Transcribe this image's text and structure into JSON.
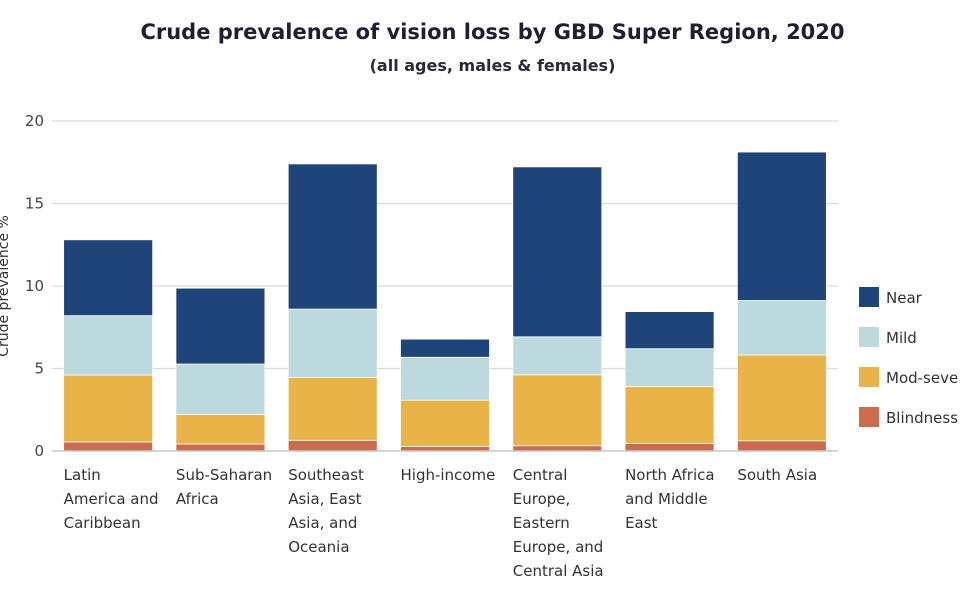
{
  "title": "Crude prevalence of vision loss by GBD Super Region, 2020",
  "subtitle": "(all ages, males & females)",
  "colors": {
    "Near": "#1e4479",
    "Mild": "#bcd9dd",
    "Mod-severe": "#e9b447",
    "Blindness": "#cc6b4d",
    "grid": "#d9d9d9",
    "axis": "#c8c8c8"
  },
  "chart_data": {
    "type": "bar",
    "stacked": true,
    "title": "Crude prevalence of vision loss by GBD Super Region, 2020",
    "subtitle": "(all ages, males & females)",
    "ylabel": "Crude prevalence %",
    "ylim": [
      0,
      20
    ],
    "yticks": [
      0,
      5,
      10,
      15,
      20
    ],
    "grid": true,
    "legend_position": "right",
    "categories": [
      [
        "Latin",
        "America and",
        "Caribbean"
      ],
      [
        "Sub-Saharan",
        "Africa"
      ],
      [
        "Southeast",
        "Asia, East",
        "Asia, and",
        "Oceania"
      ],
      [
        "High-income"
      ],
      [
        "Central",
        "Europe,",
        "Eastern",
        "Europe, and",
        "Central Asia"
      ],
      [
        "North Africa",
        "and Middle",
        "East"
      ],
      [
        "South Asia"
      ]
    ],
    "series": [
      {
        "name": "Blindness",
        "legend_label": "Blindness",
        "values": [
          0.55,
          0.42,
          0.65,
          0.28,
          0.32,
          0.45,
          0.62
        ]
      },
      {
        "name": "Mod-severe",
        "legend_label": "Mod-seve",
        "values": [
          4.05,
          1.8,
          3.8,
          2.8,
          4.3,
          3.45,
          5.2
        ]
      },
      {
        "name": "Mild",
        "legend_label": "Mild",
        "values": [
          3.6,
          3.05,
          4.15,
          2.6,
          2.3,
          2.3,
          3.3
        ]
      },
      {
        "name": "Near",
        "legend_label": "Near",
        "values": [
          4.6,
          4.6,
          8.8,
          1.1,
          10.3,
          2.25,
          9.0
        ]
      }
    ]
  }
}
